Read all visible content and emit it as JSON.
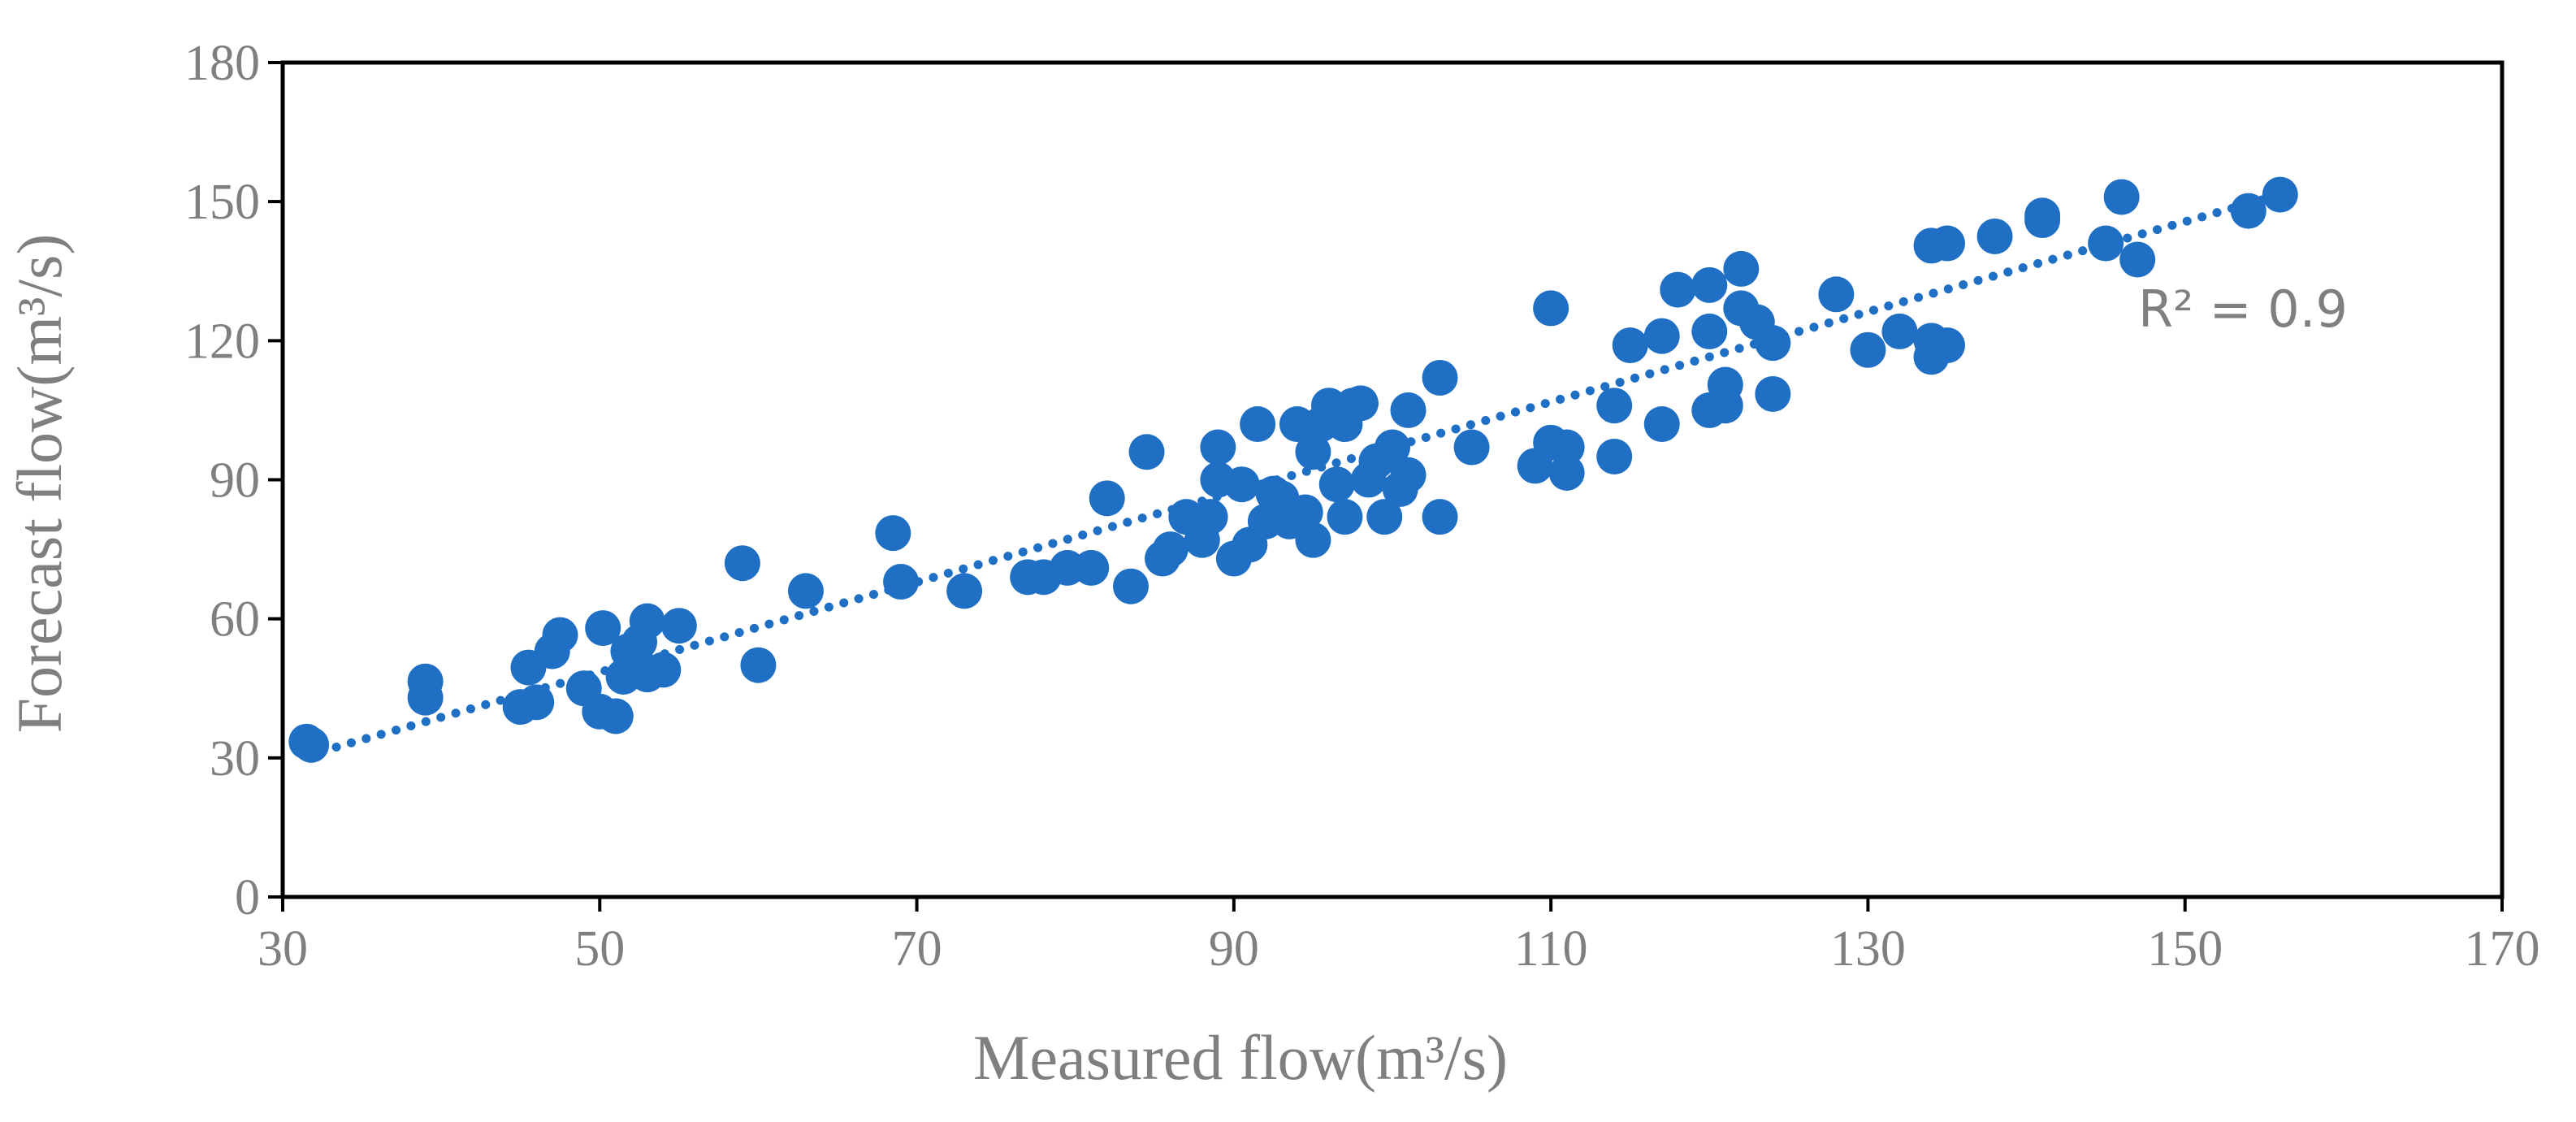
{
  "chart_data": {
    "type": "scatter",
    "title": "",
    "xlabel": "Measured flow(m³/s)",
    "ylabel": "Forecast flow(m³/s)",
    "xlim": [
      30,
      170
    ],
    "ylim": [
      0,
      180
    ],
    "xticks": [
      "30",
      "50",
      "70",
      "90",
      "110",
      "130",
      "150",
      "170"
    ],
    "yticks": [
      "0",
      "30",
      "60",
      "90",
      "120",
      "150",
      "180"
    ],
    "grid": false,
    "legend": "none",
    "marker_color": "#1f6fc5",
    "trendline": {
      "style": "dotted",
      "start": [
        31.5,
        30.5
      ],
      "end": [
        156,
        151.5
      ],
      "label": "R² = 0.9"
    },
    "points": [
      [
        31.5,
        33.5
      ],
      [
        31.8,
        32.8
      ],
      [
        39,
        46.5
      ],
      [
        39,
        43
      ],
      [
        45,
        41
      ],
      [
        45.5,
        49.5
      ],
      [
        46,
        42
      ],
      [
        47,
        53
      ],
      [
        47.5,
        56.5
      ],
      [
        49,
        45
      ],
      [
        50,
        40
      ],
      [
        50.2,
        58
      ],
      [
        51,
        39
      ],
      [
        51.5,
        47.5
      ],
      [
        51.8,
        53
      ],
      [
        52.5,
        55
      ],
      [
        53,
        59.5
      ],
      [
        53,
        48
      ],
      [
        54,
        49
      ],
      [
        55,
        58.5
      ],
      [
        59,
        72
      ],
      [
        60,
        50
      ],
      [
        63,
        66
      ],
      [
        68.5,
        78.5
      ],
      [
        69,
        68
      ],
      [
        73,
        66
      ],
      [
        77,
        69
      ],
      [
        78,
        69
      ],
      [
        79.5,
        71
      ],
      [
        81,
        71
      ],
      [
        82,
        86
      ],
      [
        83.5,
        67
      ],
      [
        84.5,
        96
      ],
      [
        85.5,
        73
      ],
      [
        86,
        75
      ],
      [
        87,
        82
      ],
      [
        88,
        77
      ],
      [
        88.5,
        82
      ],
      [
        89,
        97
      ],
      [
        89,
        90
      ],
      [
        90,
        73
      ],
      [
        90.5,
        89
      ],
      [
        91,
        76
      ],
      [
        91.5,
        102
      ],
      [
        92,
        81
      ],
      [
        92.5,
        87
      ],
      [
        93,
        86
      ],
      [
        93.5,
        81
      ],
      [
        94,
        102
      ],
      [
        94.5,
        83
      ],
      [
        95,
        77
      ],
      [
        95,
        96
      ],
      [
        95.5,
        102
      ],
      [
        96,
        106
      ],
      [
        96.5,
        89
      ],
      [
        97,
        82
      ],
      [
        97,
        102
      ],
      [
        97.5,
        106
      ],
      [
        98,
        106.5
      ],
      [
        98.5,
        90
      ],
      [
        99,
        94
      ],
      [
        99.5,
        82
      ],
      [
        100,
        97
      ],
      [
        100.5,
        88
      ],
      [
        101,
        91
      ],
      [
        101,
        105
      ],
      [
        103,
        112
      ],
      [
        103,
        82
      ],
      [
        105,
        97
      ],
      [
        109,
        93
      ],
      [
        110,
        127
      ],
      [
        110,
        98
      ],
      [
        111,
        91.5
      ],
      [
        111,
        97
      ],
      [
        114,
        95
      ],
      [
        114,
        106
      ],
      [
        115,
        119
      ],
      [
        117,
        102
      ],
      [
        117,
        121
      ],
      [
        118,
        131
      ],
      [
        120,
        132
      ],
      [
        120,
        122
      ],
      [
        120,
        105
      ],
      [
        121,
        106
      ],
      [
        121,
        110.5
      ],
      [
        122,
        135.5
      ],
      [
        122,
        127
      ],
      [
        123,
        124
      ],
      [
        124,
        119.5
      ],
      [
        124,
        108.5
      ],
      [
        128,
        130
      ],
      [
        130,
        118
      ],
      [
        132,
        122
      ],
      [
        134,
        140.5
      ],
      [
        134,
        116.5
      ],
      [
        134,
        120
      ],
      [
        135,
        141
      ],
      [
        135,
        119
      ],
      [
        138,
        142.5
      ],
      [
        141,
        147
      ],
      [
        141,
        146
      ],
      [
        145,
        141
      ],
      [
        146,
        151
      ],
      [
        147,
        137.5
      ],
      [
        154,
        148
      ],
      [
        156,
        151.5
      ]
    ]
  }
}
